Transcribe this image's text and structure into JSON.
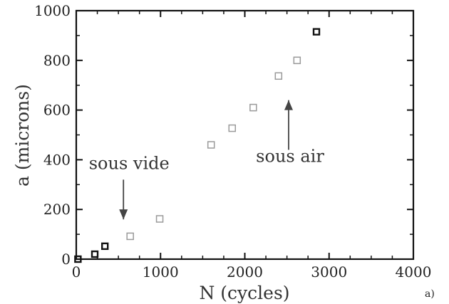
{
  "chart_data": {
    "type": "scatter",
    "xlabel": "N (cycles)",
    "ylabel": "a (microns)",
    "xlim": [
      0,
      4000
    ],
    "ylim": [
      0,
      1000
    ],
    "x_ticks": [
      "0",
      "1000",
      "2000",
      "3000",
      "4000"
    ],
    "y_ticks": [
      "0",
      "200",
      "400",
      "600",
      "800",
      "1000"
    ],
    "grid": false,
    "panel_label": "a)",
    "series": [
      {
        "color": "#111111",
        "points": [
          [
            20,
            0
          ],
          [
            220,
            20
          ],
          [
            340,
            52
          ],
          [
            2850,
            915
          ]
        ]
      },
      {
        "color": "#9a9a9a",
        "points": [
          [
            640,
            92
          ],
          [
            990,
            162
          ],
          [
            1600,
            460
          ],
          [
            1850,
            527
          ],
          [
            2100,
            610
          ],
          [
            2400,
            737
          ],
          [
            2620,
            800
          ]
        ]
      }
    ],
    "annotations": [
      {
        "text": "sous vide",
        "arrow_from": [
          560,
          320
        ],
        "arrow_to": [
          560,
          160
        ]
      },
      {
        "text": "sous air",
        "arrow_from": [
          2520,
          440
        ],
        "arrow_to": [
          2520,
          640
        ]
      }
    ]
  }
}
